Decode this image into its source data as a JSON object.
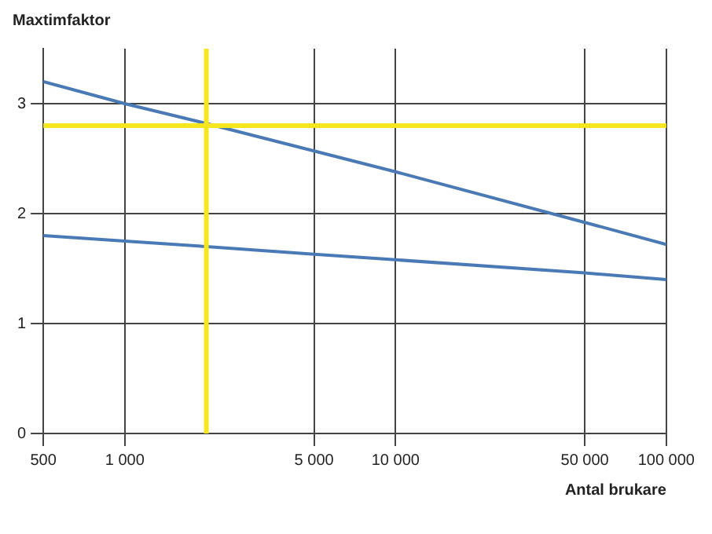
{
  "chart_data": {
    "type": "line",
    "ylabel": "Maxtimfaktor",
    "xlabel": "Antal brukare",
    "log": "x",
    "series": [
      {
        "color": "#4a7ab5",
        "x": [
          500,
          1000,
          2000,
          5000,
          10000,
          50000,
          100000
        ],
        "values": [
          3.2,
          3.0,
          2.82,
          2.57,
          2.38,
          1.92,
          1.72
        ]
      },
      {
        "color": "#4a7ab5",
        "x": [
          500,
          1000,
          2000,
          5000,
          10000,
          50000,
          100000
        ],
        "values": [
          1.8,
          1.75,
          1.7,
          1.63,
          1.58,
          1.46,
          1.4
        ]
      }
    ],
    "xlim": [
      500,
      100000
    ],
    "xticks": [
      500,
      {
        "value": 1000,
        "label": "1 000"
      },
      {
        "value": 5000,
        "label": "5 000"
      },
      {
        "value": 10000,
        "label": "10 000"
      },
      {
        "value": 50000,
        "label": "50 000"
      },
      {
        "value": 100000,
        "label": "100 000"
      }
    ],
    "ylim": [
      0,
      3.5
    ],
    "yticks": [
      0,
      1,
      2,
      3
    ],
    "grid": true,
    "legend": false,
    "marker": "none",
    "line_style": "solid",
    "ref_lines": [
      {
        "axis": "x",
        "value": 2000,
        "color": "#f5e61e"
      },
      {
        "axis": "y",
        "value": 2.8,
        "color": "#f5e61e"
      }
    ]
  }
}
